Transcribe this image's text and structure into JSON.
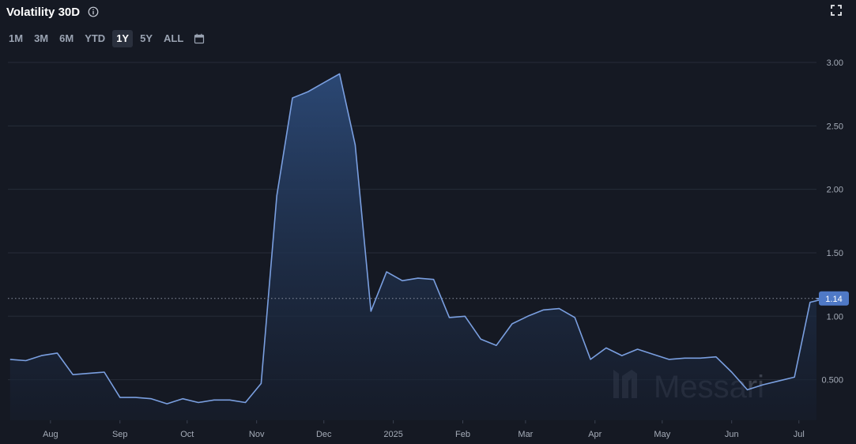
{
  "header": {
    "title": "Volatility 30D",
    "info_icon": "info-circle-icon",
    "expand_icon": "expand-icon"
  },
  "ranges": {
    "items": [
      "1M",
      "3M",
      "6M",
      "YTD",
      "1Y",
      "5Y",
      "ALL"
    ],
    "active": "1Y",
    "calendar_icon": "calendar-icon"
  },
  "watermark": "Messari",
  "colors": {
    "line": "#7a9fe0",
    "area_top": "#2c4a78",
    "area_bottom": "#161d2c",
    "grid": "#262c38",
    "badge": "#4f79c6"
  },
  "chart_data": {
    "type": "area",
    "title": "Volatility 30D",
    "ylim": [
      0.18,
      3.05
    ],
    "y_ticks": [
      0.5,
      1.0,
      1.5,
      2.0,
      2.5,
      3.0
    ],
    "y_tick_labels": [
      "0.500",
      "1.00",
      "1.50",
      "2.00",
      "2.50",
      "3.00"
    ],
    "x_tick_labels": [
      "Aug",
      "Sep",
      "Oct",
      "Nov",
      "Dec",
      "2025",
      "Feb",
      "Mar",
      "Apr",
      "May",
      "Jun",
      "Jul"
    ],
    "grid": true,
    "last_value": 1.14,
    "last_value_label": "1.14",
    "series": [
      {
        "x": [
          "2024-07-14",
          "2024-07-21",
          "2024-07-28",
          "2024-08-04",
          "2024-08-11",
          "2024-08-18",
          "2024-08-25",
          "2024-09-01",
          "2024-09-08",
          "2024-09-15",
          "2024-09-22",
          "2024-09-29",
          "2024-10-06",
          "2024-10-13",
          "2024-10-20",
          "2024-10-27",
          "2024-11-03",
          "2024-11-10",
          "2024-11-17",
          "2024-11-24",
          "2024-12-01",
          "2024-12-08",
          "2024-12-15",
          "2024-12-22",
          "2024-12-29",
          "2025-01-05",
          "2025-01-12",
          "2025-01-19",
          "2025-01-26",
          "2025-02-02",
          "2025-02-09",
          "2025-02-16",
          "2025-02-23",
          "2025-03-02",
          "2025-03-09",
          "2025-03-16",
          "2025-03-23",
          "2025-03-30",
          "2025-04-06",
          "2025-04-13",
          "2025-04-20",
          "2025-04-27",
          "2025-05-04",
          "2025-05-11",
          "2025-05-18",
          "2025-05-25",
          "2025-06-01",
          "2025-06-08",
          "2025-06-15",
          "2025-06-22",
          "2025-06-29",
          "2025-07-06",
          "2025-07-13"
        ],
        "y": [
          0.66,
          0.65,
          0.69,
          0.71,
          0.54,
          0.55,
          0.56,
          0.36,
          0.36,
          0.35,
          0.31,
          0.35,
          0.32,
          0.34,
          0.34,
          0.32,
          0.47,
          1.95,
          2.72,
          2.77,
          2.84,
          2.91,
          2.35,
          1.04,
          1.35,
          1.28,
          1.3,
          1.29,
          0.99,
          1.0,
          0.82,
          0.77,
          0.94,
          1.0,
          1.05,
          1.06,
          0.99,
          0.66,
          0.75,
          0.69,
          0.74,
          0.7,
          0.66,
          0.67,
          0.67,
          0.68,
          0.56,
          0.42,
          0.46,
          0.49,
          0.52,
          1.11,
          1.14
        ]
      }
    ]
  }
}
